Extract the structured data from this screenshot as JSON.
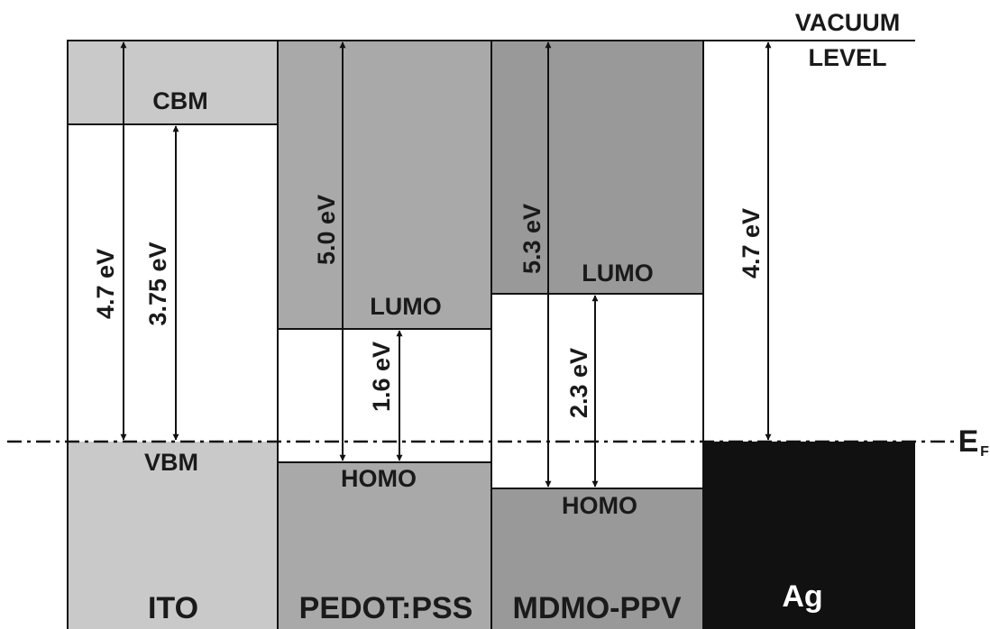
{
  "header": {
    "vacuum": "VACUUM",
    "level": "LEVEL",
    "fermi": "E",
    "fermi_sub": "F"
  },
  "layers": [
    {
      "name": "ITO",
      "upper": "CBM",
      "lower": "VBM",
      "gaps": [
        "4.7 eV",
        "3.75 eV"
      ]
    },
    {
      "name": "PEDOT:PSS",
      "upper": "LUMO",
      "lower": "HOMO",
      "gaps": [
        "5.0 eV",
        "1.6 eV"
      ]
    },
    {
      "name": "MDMO-PPV",
      "upper": "LUMO",
      "lower": "HOMO",
      "gaps": [
        "5.3 eV",
        "2.3 eV"
      ]
    },
    {
      "name": "Ag",
      "gaps": [
        "4.7 eV"
      ]
    }
  ]
}
